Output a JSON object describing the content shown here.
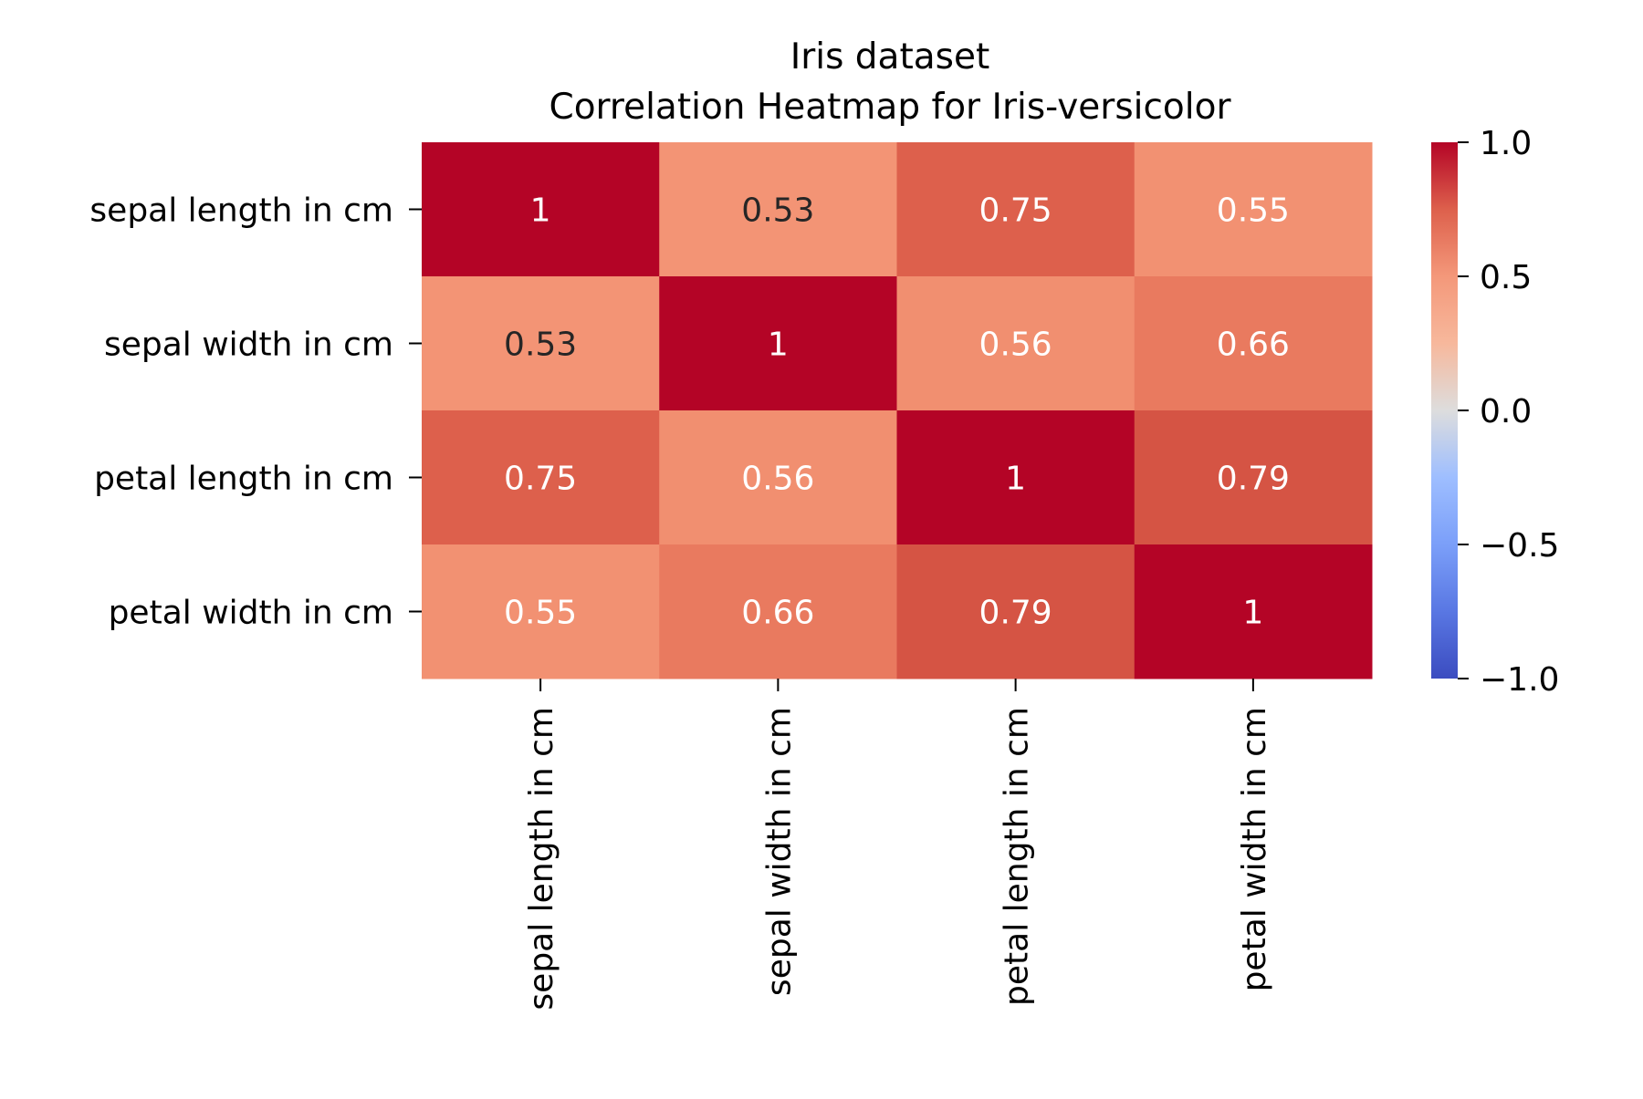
{
  "chart_data": {
    "type": "heatmap",
    "title_lines": [
      "Iris dataset",
      "Correlation Heatmap for Iris-versicolor"
    ],
    "x_categories": [
      "sepal length in cm",
      "sepal width in cm",
      "petal length in cm",
      "petal width in cm"
    ],
    "y_categories": [
      "sepal length in cm",
      "sepal width in cm",
      "petal length in cm",
      "petal width in cm"
    ],
    "values": [
      [
        1,
        0.53,
        0.75,
        0.55
      ],
      [
        0.53,
        1,
        0.56,
        0.66
      ],
      [
        0.75,
        0.56,
        1,
        0.79
      ],
      [
        0.55,
        0.66,
        0.79,
        1
      ]
    ],
    "cell_labels": [
      [
        "1",
        "0.53",
        "0.75",
        "0.55"
      ],
      [
        "0.53",
        "1",
        "0.56",
        "0.66"
      ],
      [
        "0.75",
        "0.56",
        "1",
        "0.79"
      ],
      [
        "0.55",
        "0.66",
        "0.79",
        "1"
      ]
    ],
    "colormap": "coolwarm",
    "vmin": -1.0,
    "vmax": 1.0,
    "colorbar_ticks": [
      1.0,
      0.5,
      0.0,
      -0.5,
      -1.0
    ],
    "colorbar_tick_labels": [
      "1.0",
      "0.5",
      "0.0",
      "−0.5",
      "−1.0"
    ],
    "colorbar_position": "right",
    "colors": {
      "dark_text": "#262626",
      "light_text": "#ffffff",
      "axis": "#000000"
    }
  }
}
